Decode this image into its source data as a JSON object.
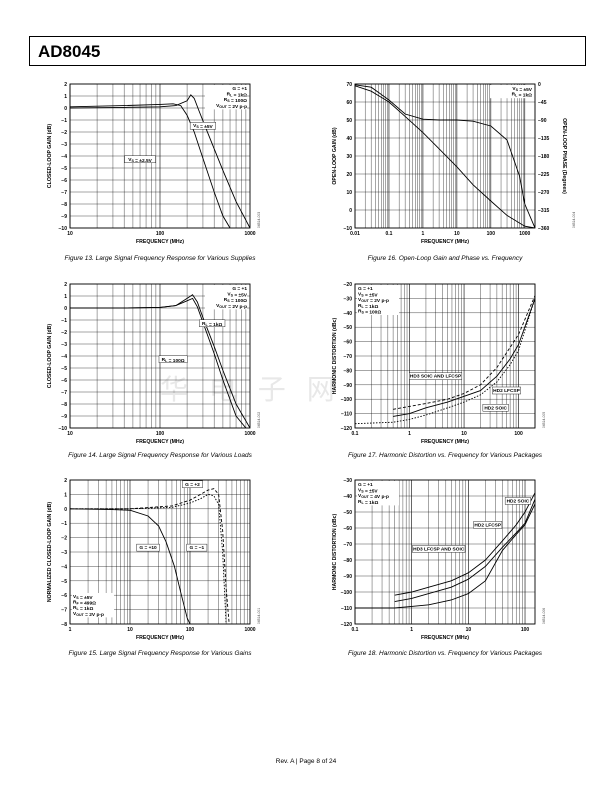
{
  "header": {
    "part_number": "AD8045"
  },
  "watermark": "华 电 子 网",
  "footer": {
    "text": "Rev. A | Page 8 of 24"
  },
  "chart_data": [
    {
      "id": "fig13",
      "type": "line",
      "caption": "Figure 13. Large Signal Frequency Response for Various Supplies",
      "code": "04514-003",
      "xlabel": "FREQUENCY (MHz)",
      "ylabel": "CLOSED-LOOP GAIN (dB)",
      "xscale": "log",
      "xlim": [
        10,
        1000
      ],
      "ylim": [
        -10,
        2
      ],
      "xticks": [
        10,
        100,
        1000
      ],
      "yticks": [
        2,
        1,
        0,
        -1,
        -2,
        -3,
        -4,
        -5,
        -6,
        -7,
        -8,
        -9,
        -10
      ],
      "conditions": [
        "G = +1",
        "R_L = 1kΩ",
        "R_S = 100Ω",
        "V_OUT = 2V p-p"
      ],
      "series": [
        {
          "name": "V_S = ±5V",
          "x": [
            10,
            40,
            100,
            150,
            200,
            220,
            240,
            270,
            320,
            400,
            500,
            700,
            1000
          ],
          "y": [
            0,
            0.05,
            0.1,
            0.2,
            0.6,
            1.1,
            0.8,
            -0.2,
            -1.6,
            -3.4,
            -5.2,
            -7.8,
            -10
          ]
        },
        {
          "name": "V_S = ±2.5V",
          "x": [
            10,
            40,
            100,
            140,
            170,
            200,
            240,
            300,
            400,
            500,
            600
          ],
          "y": [
            0.1,
            0.2,
            0.3,
            0.35,
            0.2,
            -0.6,
            -2,
            -4.2,
            -7,
            -9,
            -10
          ]
        }
      ],
      "annotations": [
        {
          "text": "V_S = ±5V",
          "x": 300,
          "y": -1.6
        },
        {
          "text": "V_S = ±2.5V",
          "x": 60,
          "y": -4.4
        }
      ]
    },
    {
      "id": "fig14",
      "type": "line",
      "caption": "Figure 14. Large Signal Frequency Response for Various Loads",
      "code": "04514-002",
      "xlabel": "FREQUENCY (MHz)",
      "ylabel": "CLOSED-LOOP GAIN (dB)",
      "xscale": "log",
      "xlim": [
        10,
        1000
      ],
      "ylim": [
        -10,
        2
      ],
      "xticks": [
        10,
        100,
        1000
      ],
      "yticks": [
        2,
        1,
        0,
        -1,
        -2,
        -3,
        -4,
        -5,
        -6,
        -7,
        -8,
        -9,
        -10
      ],
      "conditions": [
        "G = +1",
        "V_S = ±5V",
        "R_S = 100Ω",
        "V_OUT = 2V p-p"
      ],
      "series": [
        {
          "name": "R_L = 1kΩ",
          "x": [
            10,
            40,
            100,
            150,
            200,
            230,
            260,
            300,
            400,
            500,
            700,
            1000
          ],
          "y": [
            0,
            0,
            0.05,
            0.2,
            0.8,
            1.1,
            0.5,
            -0.8,
            -3.2,
            -5.2,
            -8,
            -10
          ]
        },
        {
          "name": "R_L = 100Ω",
          "x": [
            10,
            40,
            100,
            150,
            200,
            230,
            260,
            300,
            400,
            500,
            700,
            900
          ],
          "y": [
            0,
            0,
            0.05,
            0.2,
            0.6,
            0.8,
            0.1,
            -1.2,
            -3.8,
            -6,
            -9,
            -10
          ]
        }
      ],
      "annotations": [
        {
          "text": "R_L = 1kΩ",
          "x": 380,
          "y": -1.4
        },
        {
          "text": "R_L = 100Ω",
          "x": 140,
          "y": -4.4
        }
      ]
    },
    {
      "id": "fig15",
      "type": "line",
      "caption": "Figure 15. Large Signal Frequency Response for Various Gains",
      "code": "04514-001",
      "xlabel": "FREQUENCY (MHz)",
      "ylabel": "NORMALIZED CLOSED-LOOP GAIN (dB)",
      "xscale": "log",
      "xlim": [
        1,
        1000
      ],
      "ylim": [
        -8,
        2
      ],
      "xticks": [
        1,
        10,
        100,
        1000
      ],
      "yticks": [
        2,
        1,
        0,
        -1,
        -2,
        -3,
        -4,
        -5,
        -6,
        -7,
        -8
      ],
      "conditions": [
        "V_S = ±5V",
        "R_F = 499Ω",
        "R_L = 1kΩ",
        "V_OUT = 2V p-p"
      ],
      "series": [
        {
          "name": "G = +10",
          "x": [
            1,
            5,
            10,
            20,
            30,
            40,
            55,
            70,
            90,
            100
          ],
          "y": [
            0,
            -0.05,
            -0.1,
            -0.5,
            -1.2,
            -2.3,
            -4,
            -5.8,
            -7.6,
            -8
          ]
        },
        {
          "name": "G = +2",
          "x": [
            1,
            10,
            50,
            100,
            150,
            200,
            250,
            300,
            350,
            400,
            450
          ],
          "y": [
            0,
            0,
            0.2,
            0.6,
            1.0,
            1.3,
            1.4,
            1.0,
            -1.5,
            -5.5,
            -8
          ]
        },
        {
          "name": "G = −1",
          "x": [
            1,
            10,
            50,
            100,
            150,
            200,
            250,
            300,
            350,
            400
          ],
          "y": [
            0,
            0,
            0.1,
            0.4,
            0.7,
            1.0,
            0.9,
            0.3,
            -3,
            -8
          ]
        }
      ],
      "annotations": [
        {
          "text": "G = +2",
          "x": 110,
          "y": 1.6
        },
        {
          "text": "G = +10",
          "x": 20,
          "y": -2.8
        },
        {
          "text": "G = −1",
          "x": 130,
          "y": -2.8
        }
      ]
    },
    {
      "id": "fig16",
      "type": "line",
      "caption": "Figure 16. Open-Loop Gain and Phase vs. Frequency",
      "code": "04514-004",
      "xlabel": "FREQUENCY (MHz)",
      "ylabel": "OPEN-LOOP GAIN (dB)",
      "y2label": "OPEN-LOOP PHASE (Degrees)",
      "xscale": "log",
      "xlim": [
        0.01,
        2000
      ],
      "ylim": [
        -10,
        70
      ],
      "y2lim": [
        -360,
        0
      ],
      "xticks": [
        0.01,
        0.1,
        1,
        10,
        100,
        1000
      ],
      "yticks": [
        70,
        60,
        50,
        40,
        30,
        20,
        10,
        0,
        -10
      ],
      "y2ticks": [
        0,
        -45,
        -90,
        -135,
        -180,
        -225,
        -270,
        -315,
        -360
      ],
      "conditions": [
        "V_S = ±5V",
        "R_L = 1kΩ"
      ],
      "series": [
        {
          "name": "Gain",
          "axis": "left",
          "x": [
            0.01,
            0.03,
            0.1,
            0.3,
            1,
            3,
            10,
            30,
            100,
            300,
            1000,
            2000
          ],
          "y": [
            69,
            66,
            60,
            52,
            43,
            34,
            24,
            14,
            5,
            -3,
            -9,
            -10
          ]
        },
        {
          "name": "Phase",
          "axis": "right",
          "x": [
            0.01,
            0.03,
            0.1,
            0.3,
            1,
            3,
            10,
            30,
            100,
            300,
            700,
            1000,
            2000
          ],
          "y": [
            -2,
            -8,
            -40,
            -75,
            -88,
            -90,
            -90,
            -93,
            -105,
            -140,
            -230,
            -300,
            -360
          ]
        }
      ],
      "annotations": []
    },
    {
      "id": "fig17",
      "type": "line",
      "caption": "Figure 17. Harmonic Distortion vs. Frequency for Various Packages",
      "code": "04514-005",
      "xlabel": "FREQUENCY (MHz)",
      "ylabel": "HARMONIC DISTORTION (dBc)",
      "xscale": "log",
      "xlim": [
        0.1,
        200
      ],
      "ylim": [
        -120,
        -20
      ],
      "xticks": [
        0.1,
        1,
        10,
        100
      ],
      "yticks": [
        -20,
        -30,
        -40,
        -50,
        -60,
        -70,
        -80,
        -90,
        -100,
        -110,
        -120
      ],
      "conditions": [
        "G = +1",
        "V_S = ±5V",
        "V_OUT = 2V p-p",
        "R_L = 1kΩ",
        "R_S = 100Ω"
      ],
      "series": [
        {
          "name": "HD3 SOIC AND LFCSP",
          "x": [
            0.5,
            1,
            2,
            5,
            10,
            20,
            40,
            70,
            100,
            200
          ],
          "y": [
            -112,
            -110,
            -106,
            -102,
            -98,
            -94,
            -84,
            -72,
            -62,
            -30
          ]
        },
        {
          "name": "HD2 LFCSP",
          "x": [
            0.5,
            1,
            2,
            5,
            10,
            20,
            40,
            70,
            100,
            200
          ],
          "y": [
            -107,
            -105,
            -103,
            -100,
            -96,
            -90,
            -78,
            -64,
            -55,
            -28
          ]
        },
        {
          "name": "HD2 SOIC",
          "x": [
            0.1,
            0.5,
            1,
            2,
            5,
            10,
            20,
            40,
            70,
            100,
            200
          ],
          "y": [
            -117,
            -116,
            -114,
            -111,
            -106,
            -102,
            -97,
            -88,
            -76,
            -66,
            -30
          ]
        }
      ],
      "annotations": [
        {
          "text": "HD3 SOIC AND LFCSP",
          "x": 3,
          "y": -85
        },
        {
          "text": "HD2 LFCSP",
          "x": 60,
          "y": -95
        },
        {
          "text": "HD2 SOIC",
          "x": 38,
          "y": -107
        }
      ]
    },
    {
      "id": "fig18",
      "type": "line",
      "caption": "Figure 18. Harmonic Distortion vs. Frequency for Various Packages",
      "code": "04514-006",
      "xlabel": "FREQUENCY (MHz)",
      "ylabel": "HARMONIC DISTORTION (dBc)",
      "xscale": "log",
      "xlim": [
        0.1,
        150
      ],
      "ylim": [
        -120,
        -30
      ],
      "xticks": [
        0.1,
        1,
        10,
        100
      ],
      "yticks": [
        -30,
        -40,
        -50,
        -60,
        -70,
        -80,
        -90,
        -100,
        -110,
        -120
      ],
      "conditions": [
        "G = +1",
        "V_S = ±5V",
        "V_OUT = 4V p-p",
        "R_L = 1kΩ"
      ],
      "series": [
        {
          "name": "HD2 SOIC",
          "x": [
            0.5,
            1,
            2,
            5,
            10,
            20,
            40,
            70,
            100,
            150
          ],
          "y": [
            -102,
            -100,
            -97,
            -93,
            -88,
            -80,
            -68,
            -58,
            -50,
            -38
          ]
        },
        {
          "name": "HD2 LFCSP",
          "x": [
            0.5,
            1,
            2,
            5,
            10,
            20,
            40,
            70,
            100,
            150
          ],
          "y": [
            -106,
            -104,
            -101,
            -97,
            -92,
            -84,
            -72,
            -63,
            -57,
            -42
          ]
        },
        {
          "name": "HD3 LFCSP AND SOIC",
          "x": [
            0.1,
            0.5,
            1,
            2,
            5,
            10,
            20,
            40,
            70,
            100,
            150
          ],
          "y": [
            -110,
            -110,
            -109,
            -108,
            -105,
            -101,
            -93,
            -74,
            -64,
            -58,
            -45
          ]
        }
      ],
      "annotations": [
        {
          "text": "HD2 SOIC",
          "x": 75,
          "y": -44
        },
        {
          "text": "HD2 LFCSP",
          "x": 22,
          "y": -59
        },
        {
          "text": "HD3 LFCSP AND SOIC",
          "x": 3,
          "y": -74
        }
      ]
    }
  ]
}
